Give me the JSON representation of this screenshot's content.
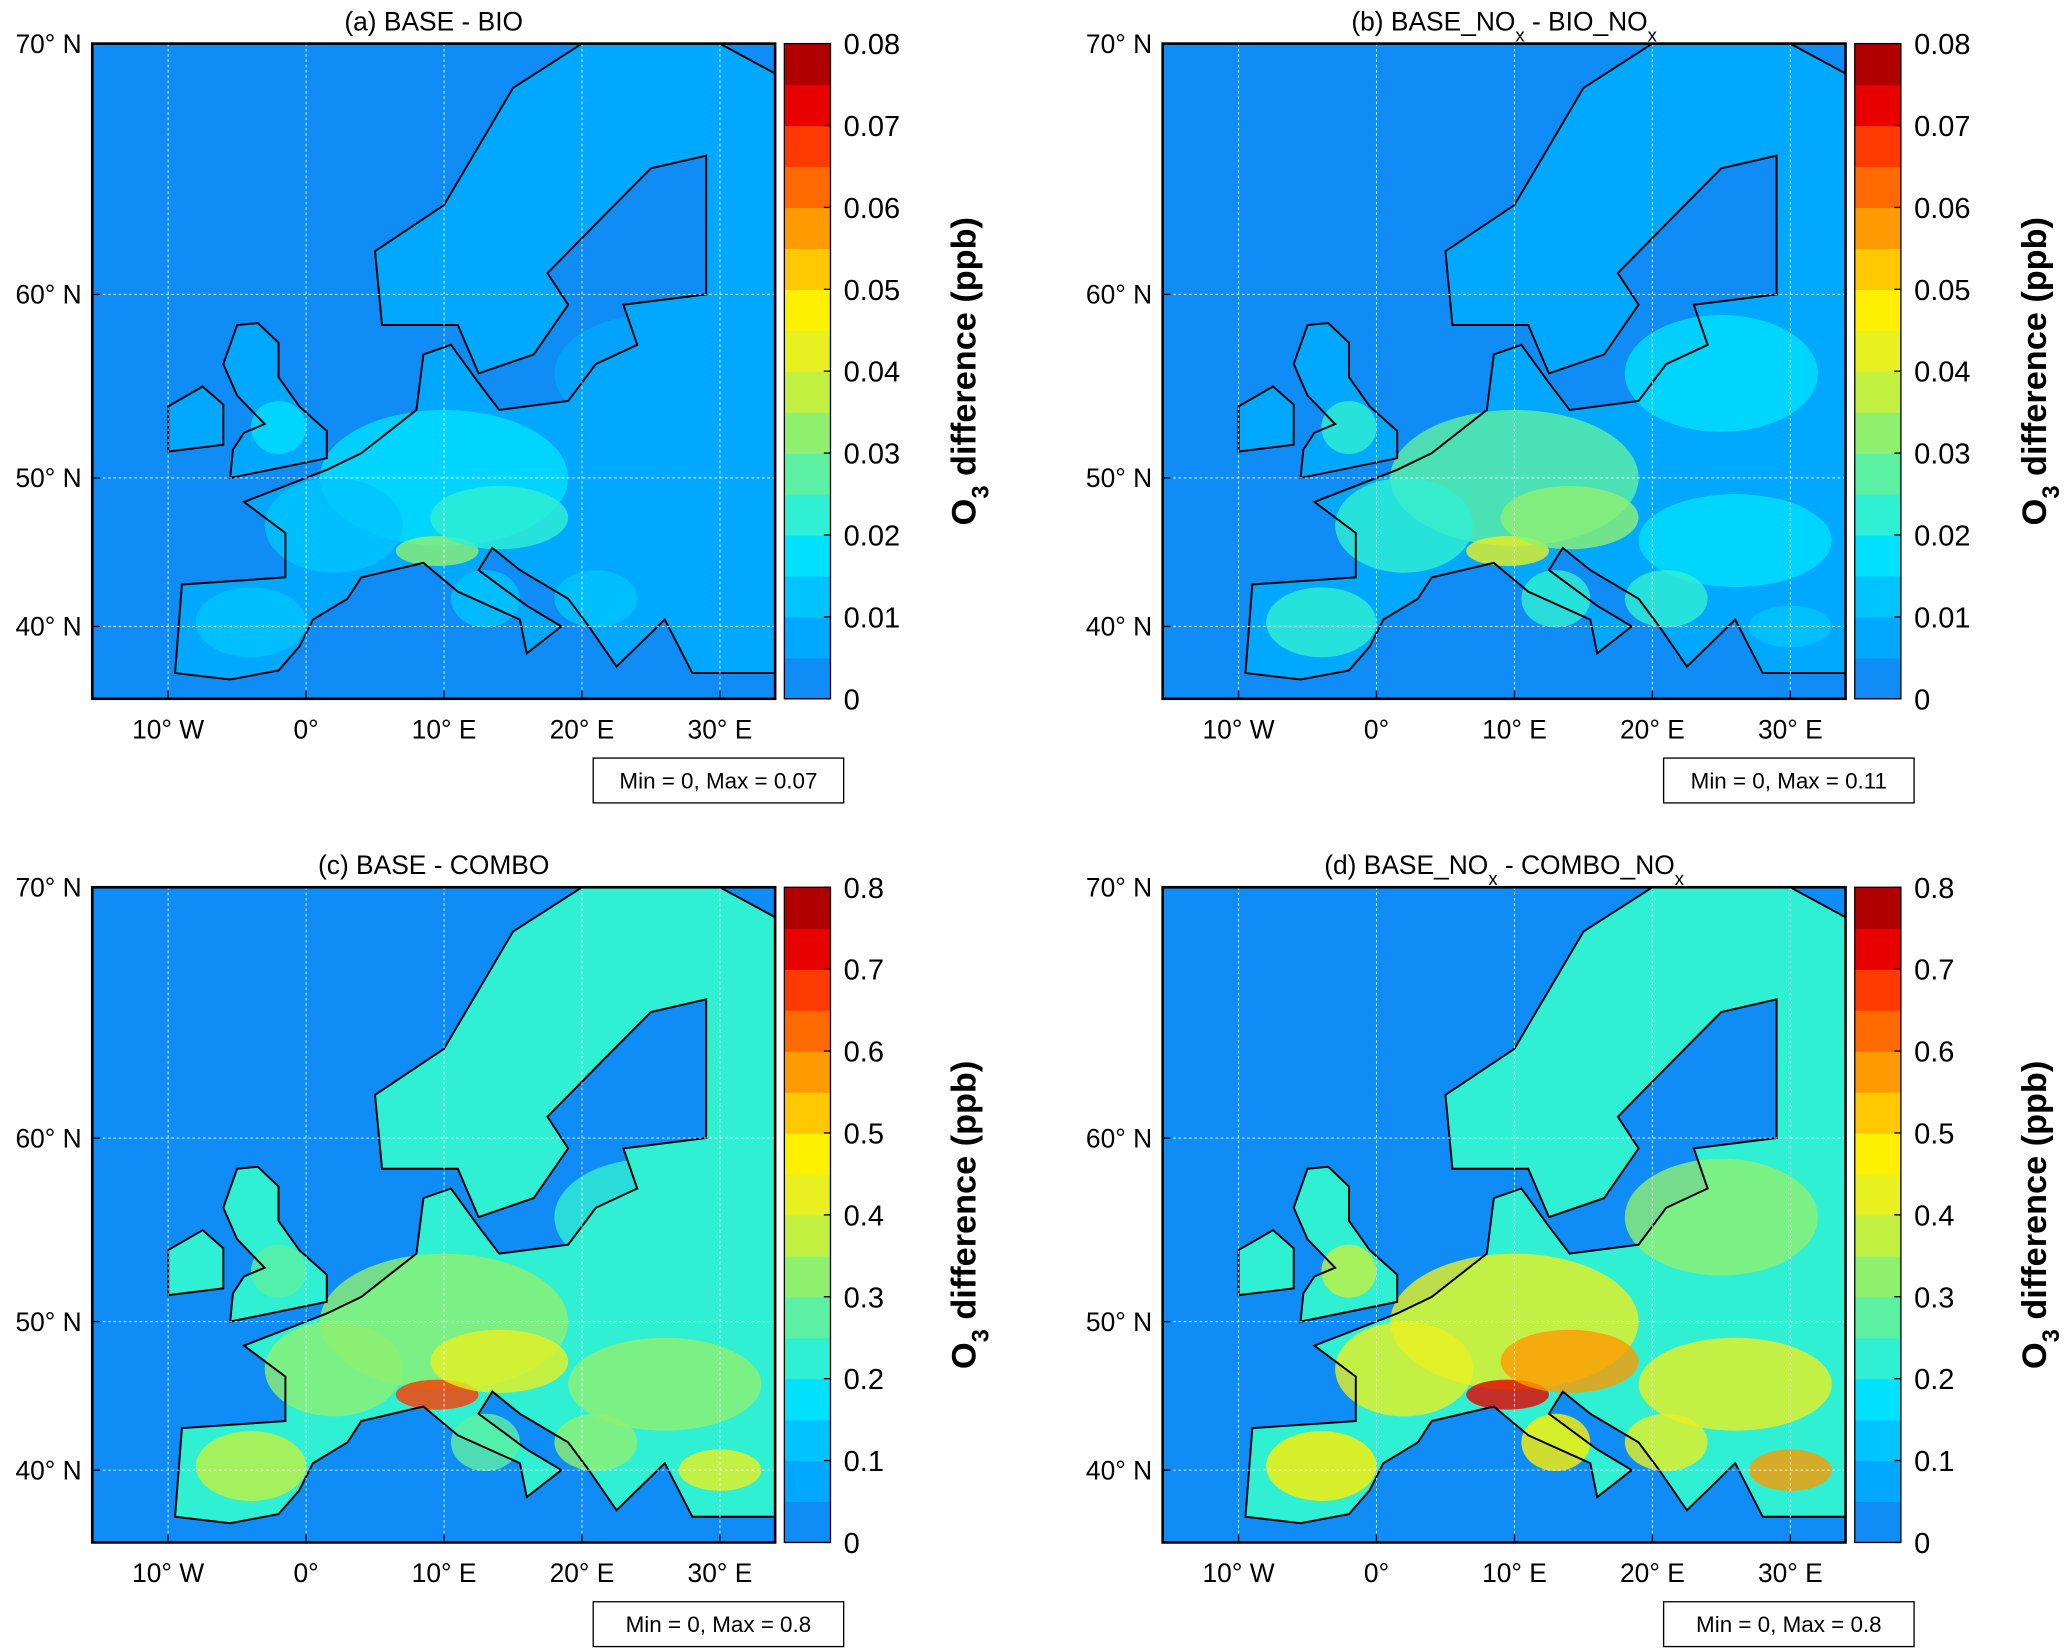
{
  "panels": [
    {
      "title": [
        {
          "text": "(a) BASE - BIO"
        }
      ],
      "xlim": [
        -15.5,
        34
      ],
      "ylim": [
        34.5,
        70
      ],
      "xticks": [
        {
          "value": -10,
          "label": "10° W"
        },
        {
          "value": 0,
          "label": "0°"
        },
        {
          "value": 10,
          "label": "10° E"
        },
        {
          "value": 20,
          "label": "20° E"
        },
        {
          "value": 30,
          "label": "30° E"
        }
      ],
      "yticks": [
        {
          "value": 40,
          "label": "40° N"
        },
        {
          "value": 50,
          "label": "50° N"
        },
        {
          "value": 60,
          "label": "60° N"
        },
        {
          "value": 70,
          "label": "70° N"
        }
      ],
      "clim": [
        0,
        0.08
      ],
      "cticks": [
        0,
        0.01,
        0.02,
        0.03,
        0.04,
        0.05,
        0.06,
        0.07,
        0.08
      ],
      "colorbar_label": [
        {
          "text": "O"
        },
        {
          "text": "3",
          "sub": true
        },
        {
          "text": " difference (ppb)"
        }
      ],
      "stats": "Min = 0, Max = 0.07"
    },
    {
      "title": [
        {
          "text": "(b) BASE_NO"
        },
        {
          "text": "x",
          "sub": true
        },
        {
          "text": " - BIO_NO"
        },
        {
          "text": "x",
          "sub": true
        }
      ],
      "xlim": [
        -15.5,
        34
      ],
      "ylim": [
        34.5,
        70
      ],
      "xticks": [
        {
          "value": -10,
          "label": "10° W"
        },
        {
          "value": 0,
          "label": "0°"
        },
        {
          "value": 10,
          "label": "10° E"
        },
        {
          "value": 20,
          "label": "20° E"
        },
        {
          "value": 30,
          "label": "30° E"
        }
      ],
      "yticks": [
        {
          "value": 40,
          "label": "40° N"
        },
        {
          "value": 50,
          "label": "50° N"
        },
        {
          "value": 60,
          "label": "60° N"
        },
        {
          "value": 70,
          "label": "70° N"
        }
      ],
      "clim": [
        0,
        0.08
      ],
      "cticks": [
        0,
        0.01,
        0.02,
        0.03,
        0.04,
        0.05,
        0.06,
        0.07,
        0.08
      ],
      "colorbar_label": [
        {
          "text": "O"
        },
        {
          "text": "3",
          "sub": true
        },
        {
          "text": " difference (ppb)"
        }
      ],
      "stats": "Min = 0, Max = 0.11"
    },
    {
      "title": [
        {
          "text": "(c) BASE - COMBO"
        }
      ],
      "xlim": [
        -15.5,
        34
      ],
      "ylim": [
        34.5,
        70
      ],
      "xticks": [
        {
          "value": -10,
          "label": "10° W"
        },
        {
          "value": 0,
          "label": "0°"
        },
        {
          "value": 10,
          "label": "10° E"
        },
        {
          "value": 20,
          "label": "20° E"
        },
        {
          "value": 30,
          "label": "30° E"
        }
      ],
      "yticks": [
        {
          "value": 40,
          "label": "40° N"
        },
        {
          "value": 50,
          "label": "50° N"
        },
        {
          "value": 60,
          "label": "60° N"
        },
        {
          "value": 70,
          "label": "70° N"
        }
      ],
      "clim": [
        0,
        0.8
      ],
      "cticks": [
        0,
        0.1,
        0.2,
        0.3,
        0.4,
        0.5,
        0.6,
        0.7,
        0.8
      ],
      "colorbar_label": [
        {
          "text": "O"
        },
        {
          "text": "3",
          "sub": true
        },
        {
          "text": " difference (ppb)"
        }
      ],
      "stats": "Min = 0, Max = 0.8"
    },
    {
      "title": [
        {
          "text": "(d) BASE_NO"
        },
        {
          "text": "x",
          "sub": true
        },
        {
          "text": " - COMBO_NO"
        },
        {
          "text": "x",
          "sub": true
        }
      ],
      "xlim": [
        -15.5,
        34
      ],
      "ylim": [
        34.5,
        70
      ],
      "xticks": [
        {
          "value": -10,
          "label": "10° W"
        },
        {
          "value": 0,
          "label": "0°"
        },
        {
          "value": 10,
          "label": "10° E"
        },
        {
          "value": 20,
          "label": "20° E"
        },
        {
          "value": 30,
          "label": "30° E"
        }
      ],
      "yticks": [
        {
          "value": 40,
          "label": "40° N"
        },
        {
          "value": 50,
          "label": "50° N"
        },
        {
          "value": 60,
          "label": "60° N"
        },
        {
          "value": 70,
          "label": "70° N"
        }
      ],
      "clim": [
        0,
        0.8
      ],
      "cticks": [
        0,
        0.1,
        0.2,
        0.3,
        0.4,
        0.5,
        0.6,
        0.7,
        0.8
      ],
      "colorbar_label": [
        {
          "text": "O"
        },
        {
          "text": "3",
          "sub": true
        },
        {
          "text": " difference (ppb)"
        }
      ],
      "stats": "Min = 0, Max = 0.8"
    }
  ],
  "colormap": [
    "#0f8cf5",
    "#00a8ff",
    "#00c4ff",
    "#00e0ff",
    "#2ff0d2",
    "#5cf0a2",
    "#8ff070",
    "#c2f040",
    "#e8f020",
    "#fff000",
    "#ffc800",
    "#ff9a00",
    "#ff6a00",
    "#ff3a00",
    "#e80000",
    "#b00000"
  ],
  "grid": true
}
